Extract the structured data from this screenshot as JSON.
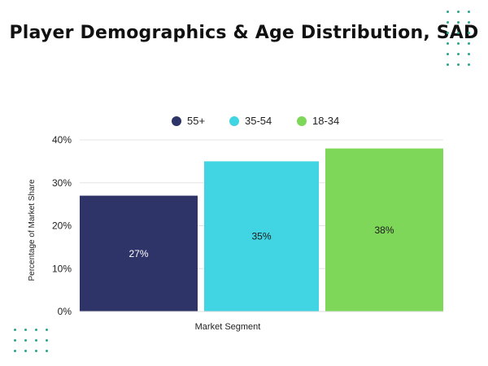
{
  "header": {
    "title": "Player Demographics & Age Distribution, SAD"
  },
  "decor": {
    "dot_color": "#2aa58e"
  },
  "chart_data": {
    "type": "bar",
    "xlabel": "Market Segment",
    "ylabel": "Percentage of Market Share",
    "ylim": [
      0,
      40
    ],
    "y_ticks": [
      "0%",
      "10%",
      "20%",
      "30%",
      "40%"
    ],
    "grid": true,
    "legend_position": "top-center",
    "series": [
      {
        "name": "55+",
        "value": 27,
        "label": "27%",
        "color": "#2e3468",
        "label_color": "#ffffff"
      },
      {
        "name": "35-54",
        "value": 35,
        "label": "35%",
        "color": "#41d4e2",
        "label_color": "#1a1a1a"
      },
      {
        "name": "18-34",
        "value": 38,
        "label": "38%",
        "color": "#7fd75a",
        "label_color": "#1a1a1a"
      }
    ]
  }
}
